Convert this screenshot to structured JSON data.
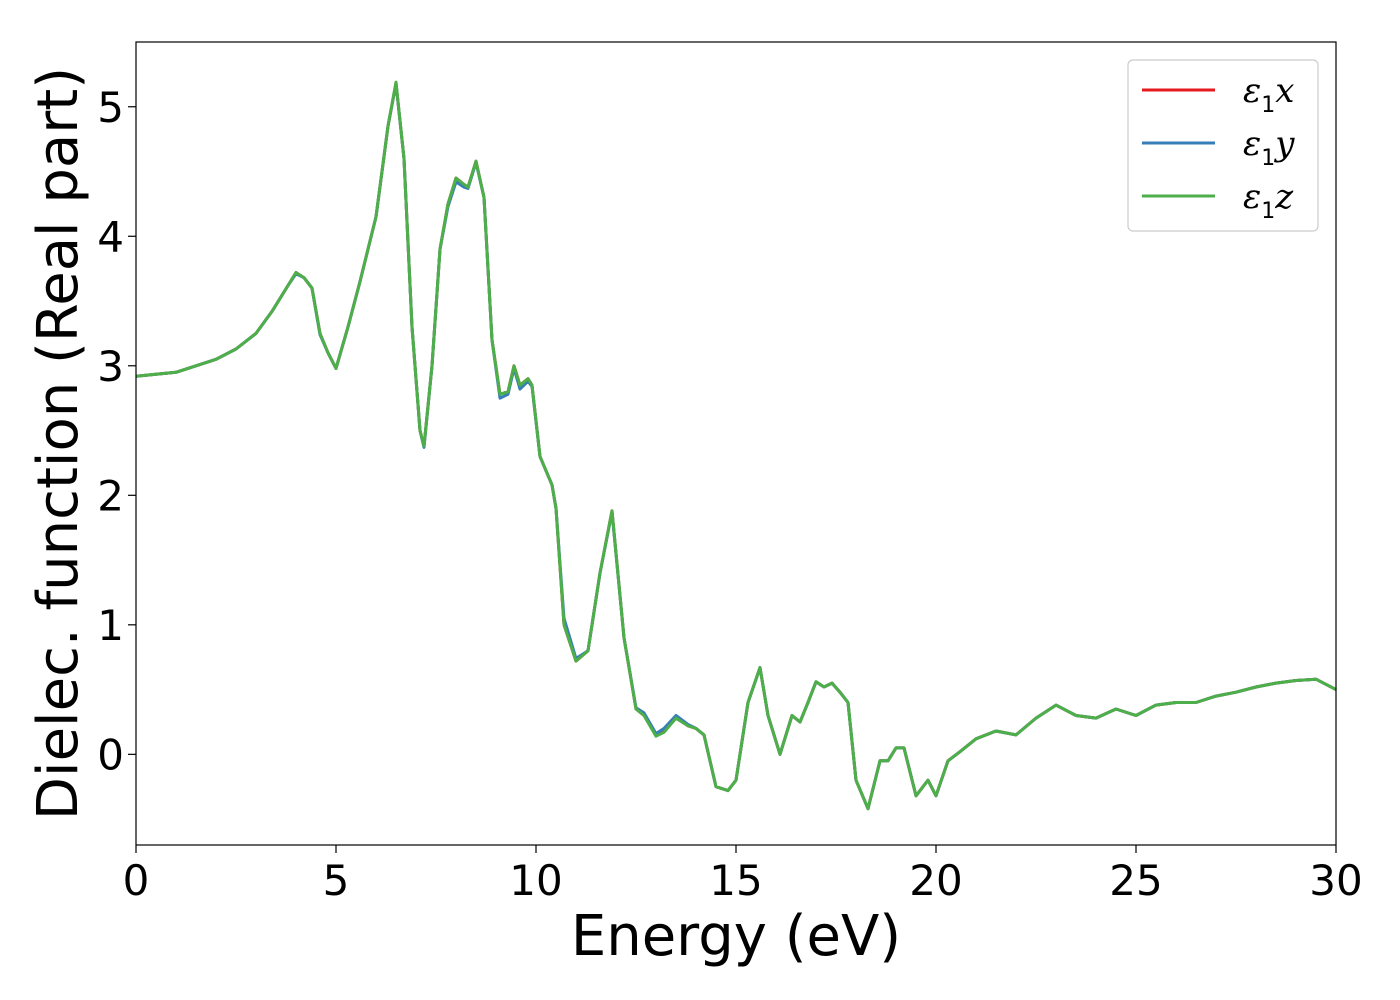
{
  "chart_data": {
    "type": "line",
    "title": "",
    "xlabel": "Energy (eV)",
    "ylabel": "Dielec. function (Real part)",
    "xlim": [
      0,
      30
    ],
    "ylim": [
      -0.7,
      5.5
    ],
    "xticks": [
      0,
      5,
      10,
      15,
      20,
      25,
      30
    ],
    "yticks": [
      0,
      1,
      2,
      3,
      4,
      5
    ],
    "grid": false,
    "legend_position": "top-right",
    "series": [
      {
        "name": "ε1x",
        "color": "#e41a1c",
        "x": [
          0,
          1,
          2,
          2.5,
          3,
          3.4,
          3.8,
          4.0,
          4.2,
          4.4,
          4.6,
          4.8,
          5.0,
          5.3,
          5.6,
          6.0,
          6.3,
          6.5,
          6.7,
          6.9,
          7.1,
          7.2,
          7.4,
          7.6,
          7.8,
          8.0,
          8.2,
          8.3,
          8.5,
          8.7,
          8.9,
          9.1,
          9.3,
          9.45,
          9.6,
          9.8,
          9.9,
          10.1,
          10.4,
          10.5,
          10.7,
          11.0,
          11.3,
          11.6,
          11.9,
          12.2,
          12.5,
          12.7,
          13.0,
          13.2,
          13.5,
          13.8,
          14.0,
          14.2,
          14.5,
          14.8,
          15.0,
          15.3,
          15.6,
          15.8,
          16.1,
          16.4,
          16.6,
          16.8,
          17.0,
          17.2,
          17.4,
          17.6,
          17.8,
          18.0,
          18.3,
          18.6,
          18.8,
          19.0,
          19.2,
          19.5,
          19.8,
          20.0,
          20.3,
          20.6,
          21.0,
          21.5,
          22.0,
          22.5,
          23.0,
          23.5,
          24.0,
          24.5,
          25.0,
          25.5,
          26.0,
          26.5,
          27.0,
          27.5,
          28.0,
          28.5,
          29.0,
          29.5,
          30.0
        ],
        "y": [
          2.92,
          2.95,
          3.05,
          3.13,
          3.25,
          3.42,
          3.62,
          3.72,
          3.68,
          3.6,
          3.25,
          3.1,
          2.98,
          3.3,
          3.65,
          4.15,
          4.85,
          5.18,
          4.6,
          3.3,
          2.5,
          2.38,
          3.0,
          3.9,
          4.25,
          4.45,
          4.4,
          4.38,
          4.58,
          4.3,
          3.2,
          2.78,
          2.8,
          3.0,
          2.85,
          2.9,
          2.85,
          2.3,
          2.08,
          1.9,
          1.0,
          0.72,
          0.8,
          1.4,
          1.88,
          0.9,
          0.35,
          0.3,
          0.15,
          0.18,
          0.28,
          0.22,
          0.2,
          0.15,
          -0.25,
          -0.28,
          -0.2,
          0.4,
          0.67,
          0.3,
          0.0,
          0.3,
          0.25,
          0.4,
          0.56,
          0.52,
          0.55,
          0.48,
          0.4,
          -0.2,
          -0.42,
          -0.05,
          -0.05,
          0.05,
          0.05,
          -0.32,
          -0.2,
          -0.32,
          -0.05,
          0.02,
          0.12,
          0.18,
          0.15,
          0.28,
          0.38,
          0.3,
          0.28,
          0.35,
          0.3,
          0.38,
          0.4,
          0.4,
          0.45,
          0.48,
          0.52,
          0.55,
          0.57,
          0.58,
          0.5
        ]
      },
      {
        "name": "ε1y",
        "color": "#377eb8",
        "x": [
          0,
          1,
          2,
          2.5,
          3,
          3.4,
          3.8,
          4.0,
          4.2,
          4.4,
          4.6,
          4.8,
          5.0,
          5.3,
          5.6,
          6.0,
          6.3,
          6.5,
          6.7,
          6.9,
          7.1,
          7.2,
          7.4,
          7.6,
          7.8,
          8.0,
          8.2,
          8.3,
          8.5,
          8.7,
          8.9,
          9.1,
          9.3,
          9.45,
          9.6,
          9.8,
          9.9,
          10.1,
          10.4,
          10.5,
          10.7,
          11.0,
          11.3,
          11.6,
          11.9,
          12.2,
          12.5,
          12.7,
          13.0,
          13.2,
          13.5,
          13.8,
          14.0,
          14.2,
          14.5,
          14.8,
          15.0,
          15.3,
          15.6,
          15.8,
          16.1,
          16.4,
          16.6,
          16.8,
          17.0,
          17.2,
          17.4,
          17.6,
          17.8,
          18.0,
          18.3,
          18.6,
          18.8,
          19.0,
          19.2,
          19.5,
          19.8,
          20.0,
          20.3,
          20.6,
          21.0,
          21.5,
          22.0,
          22.5,
          23.0,
          23.5,
          24.0,
          24.5,
          25.0,
          25.5,
          26.0,
          26.5,
          27.0,
          27.5,
          28.0,
          28.5,
          29.0,
          29.5,
          30.0
        ],
        "y": [
          2.92,
          2.95,
          3.05,
          3.13,
          3.25,
          3.42,
          3.62,
          3.71,
          3.68,
          3.6,
          3.24,
          3.1,
          2.98,
          3.3,
          3.65,
          4.15,
          4.85,
          5.18,
          4.6,
          3.3,
          2.5,
          2.37,
          3.0,
          3.9,
          4.23,
          4.42,
          4.38,
          4.37,
          4.57,
          4.3,
          3.2,
          2.75,
          2.78,
          2.98,
          2.82,
          2.88,
          2.84,
          2.3,
          2.08,
          1.9,
          1.05,
          0.74,
          0.8,
          1.4,
          1.87,
          0.9,
          0.36,
          0.32,
          0.16,
          0.2,
          0.3,
          0.23,
          0.2,
          0.15,
          -0.25,
          -0.28,
          -0.2,
          0.4,
          0.67,
          0.3,
          0.0,
          0.3,
          0.25,
          0.4,
          0.56,
          0.52,
          0.55,
          0.48,
          0.4,
          -0.2,
          -0.42,
          -0.05,
          -0.05,
          0.05,
          0.05,
          -0.32,
          -0.2,
          -0.32,
          -0.05,
          0.02,
          0.12,
          0.18,
          0.15,
          0.28,
          0.38,
          0.3,
          0.28,
          0.35,
          0.3,
          0.38,
          0.4,
          0.4,
          0.45,
          0.48,
          0.52,
          0.55,
          0.57,
          0.58,
          0.5
        ]
      },
      {
        "name": "ε1z",
        "color": "#4daf4a",
        "x": [
          0,
          1,
          2,
          2.5,
          3,
          3.4,
          3.8,
          4.0,
          4.2,
          4.4,
          4.6,
          4.8,
          5.0,
          5.3,
          5.6,
          6.0,
          6.3,
          6.5,
          6.7,
          6.9,
          7.1,
          7.2,
          7.4,
          7.6,
          7.8,
          8.0,
          8.2,
          8.3,
          8.5,
          8.7,
          8.9,
          9.1,
          9.3,
          9.45,
          9.6,
          9.8,
          9.9,
          10.1,
          10.4,
          10.5,
          10.7,
          11.0,
          11.3,
          11.6,
          11.9,
          12.2,
          12.5,
          12.7,
          13.0,
          13.2,
          13.5,
          13.8,
          14.0,
          14.2,
          14.5,
          14.8,
          15.0,
          15.3,
          15.6,
          15.8,
          16.1,
          16.4,
          16.6,
          16.8,
          17.0,
          17.2,
          17.4,
          17.6,
          17.8,
          18.0,
          18.3,
          18.6,
          18.8,
          19.0,
          19.2,
          19.5,
          19.8,
          20.0,
          20.3,
          20.6,
          21.0,
          21.5,
          22.0,
          22.5,
          23.0,
          23.5,
          24.0,
          24.5,
          25.0,
          25.5,
          26.0,
          26.5,
          27.0,
          27.5,
          28.0,
          28.5,
          29.0,
          29.5,
          30.0
        ],
        "y": [
          2.92,
          2.95,
          3.05,
          3.13,
          3.25,
          3.42,
          3.62,
          3.72,
          3.68,
          3.6,
          3.25,
          3.1,
          2.98,
          3.3,
          3.65,
          4.15,
          4.85,
          5.19,
          4.6,
          3.3,
          2.5,
          2.38,
          3.0,
          3.9,
          4.25,
          4.45,
          4.4,
          4.38,
          4.58,
          4.3,
          3.2,
          2.78,
          2.8,
          3.0,
          2.85,
          2.9,
          2.85,
          2.3,
          2.08,
          1.9,
          1.0,
          0.72,
          0.8,
          1.4,
          1.88,
          0.9,
          0.35,
          0.3,
          0.14,
          0.17,
          0.28,
          0.22,
          0.2,
          0.15,
          -0.25,
          -0.28,
          -0.2,
          0.4,
          0.67,
          0.3,
          0.0,
          0.3,
          0.25,
          0.4,
          0.56,
          0.52,
          0.55,
          0.48,
          0.4,
          -0.2,
          -0.42,
          -0.05,
          -0.05,
          0.05,
          0.05,
          -0.32,
          -0.2,
          -0.32,
          -0.05,
          0.02,
          0.12,
          0.18,
          0.15,
          0.28,
          0.38,
          0.3,
          0.28,
          0.35,
          0.3,
          0.38,
          0.4,
          0.4,
          0.45,
          0.48,
          0.52,
          0.55,
          0.57,
          0.58,
          0.5
        ]
      }
    ],
    "legend_entries": [
      {
        "base": "ε",
        "sub": "1",
        "tail": "x"
      },
      {
        "base": "ε",
        "sub": "1",
        "tail": "y"
      },
      {
        "base": "ε",
        "sub": "1",
        "tail": "z"
      }
    ]
  }
}
